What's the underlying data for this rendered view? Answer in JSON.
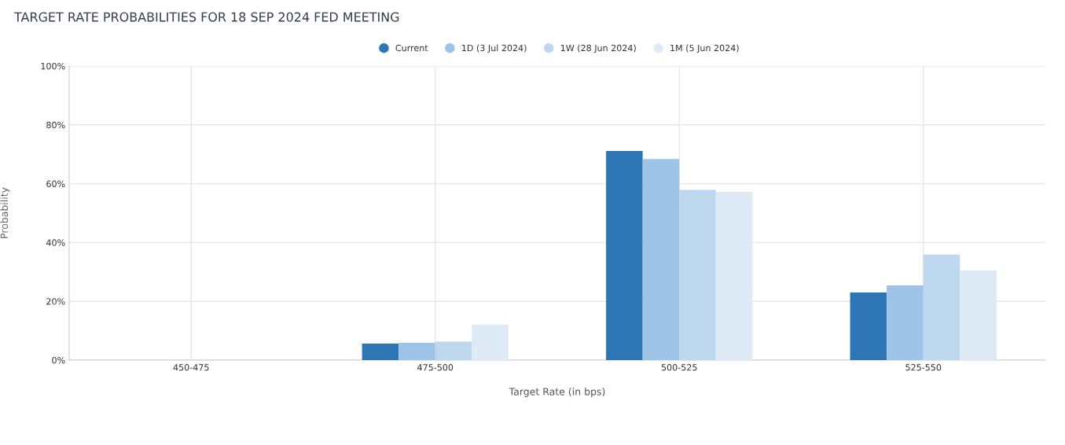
{
  "chart_data": {
    "type": "bar",
    "title": "TARGET RATE PROBABILITIES FOR 18 SEP 2024 FED MEETING",
    "xlabel": "Target Rate (in bps)",
    "ylabel": "Probability",
    "categories": [
      "450-475",
      "475-500",
      "500-525",
      "525-550"
    ],
    "series": [
      {
        "name": "Current",
        "color": "#2e75b6",
        "values": [
          0,
          5.6,
          71.1,
          23.0
        ]
      },
      {
        "name": "1D (3 Jul 2024)",
        "color": "#9dc3e6",
        "values": [
          0,
          5.9,
          68.4,
          25.4
        ]
      },
      {
        "name": "1W (28 Jun 2024)",
        "color": "#bdd7ee",
        "values": [
          0,
          6.3,
          57.9,
          35.9
        ]
      },
      {
        "name": "1M (5 Jun 2024)",
        "color": "#deebf7",
        "values": [
          0,
          12.0,
          57.2,
          30.5
        ]
      }
    ],
    "ylim": [
      0,
      100
    ],
    "yticks": [
      {
        "value": 0,
        "label": "0%"
      },
      {
        "value": 20,
        "label": "20%"
      },
      {
        "value": 40,
        "label": "40%"
      },
      {
        "value": 60,
        "label": "60%"
      },
      {
        "value": 80,
        "label": "80%"
      },
      {
        "value": 100,
        "label": "100%"
      }
    ],
    "grid": true,
    "legend": "top",
    "marker": "circle"
  }
}
